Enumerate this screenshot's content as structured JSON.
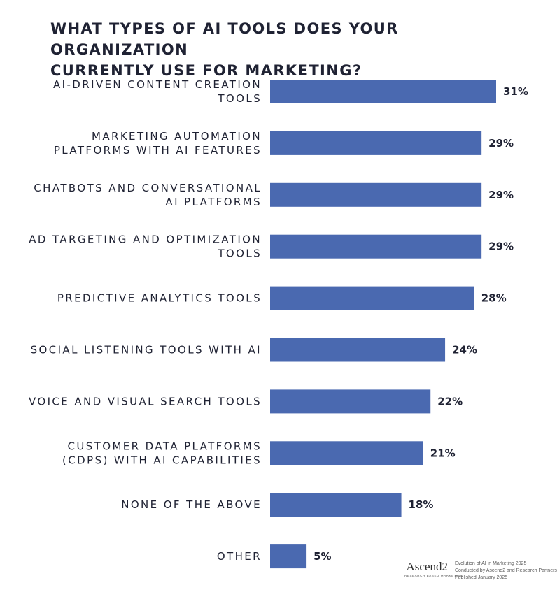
{
  "header": {
    "title": "WHAT TYPES OF AI TOOLS DOES YOUR ORGANIZATION\nCURRENTLY USE FOR MARKETING?"
  },
  "chart_data": {
    "type": "bar",
    "orientation": "horizontal",
    "categories": [
      [
        "AI-DRIVEN CONTENT CREATION",
        "TOOLS"
      ],
      [
        "MARKETING AUTOMATION",
        "PLATFORMS WITH AI FEATURES"
      ],
      [
        "CHATBOTS AND CONVERSATIONAL",
        "AI PLATFORMS"
      ],
      [
        "AD TARGETING AND OPTIMIZATION",
        "TOOLS"
      ],
      [
        "PREDICTIVE ANALYTICS TOOLS"
      ],
      [
        "SOCIAL LISTENING TOOLS WITH AI"
      ],
      [
        "VOICE AND VISUAL SEARCH TOOLS"
      ],
      [
        "CUSTOMER DATA PLATFORMS",
        "(CDPS) WITH AI CAPABILITIES"
      ],
      [
        "NONE OF THE ABOVE"
      ],
      [
        "OTHER"
      ]
    ],
    "values": [
      31,
      29,
      29,
      29,
      28,
      24,
      22,
      21,
      18,
      5
    ],
    "value_labels": [
      "31%",
      "29%",
      "29%",
      "29%",
      "28%",
      "24%",
      "22%",
      "21%",
      "18%",
      "5%"
    ],
    "title": "WHAT TYPES OF AI TOOLS DOES YOUR ORGANIZATION CURRENTLY USE FOR MARKETING?",
    "xlabel": "",
    "ylabel": "",
    "xlim": [
      0,
      31
    ],
    "grid": false,
    "legend": "none",
    "bar_color": "#4a69b0",
    "text_color": "#1f2233"
  },
  "footer": {
    "logo": "Ascend2",
    "logo_sub": "RESEARCH BASED MARKETING",
    "lines": [
      "Evolution of AI in Marketing 2025",
      "Conducted by Ascend2 and Research Partners",
      "Published January 2025"
    ]
  }
}
